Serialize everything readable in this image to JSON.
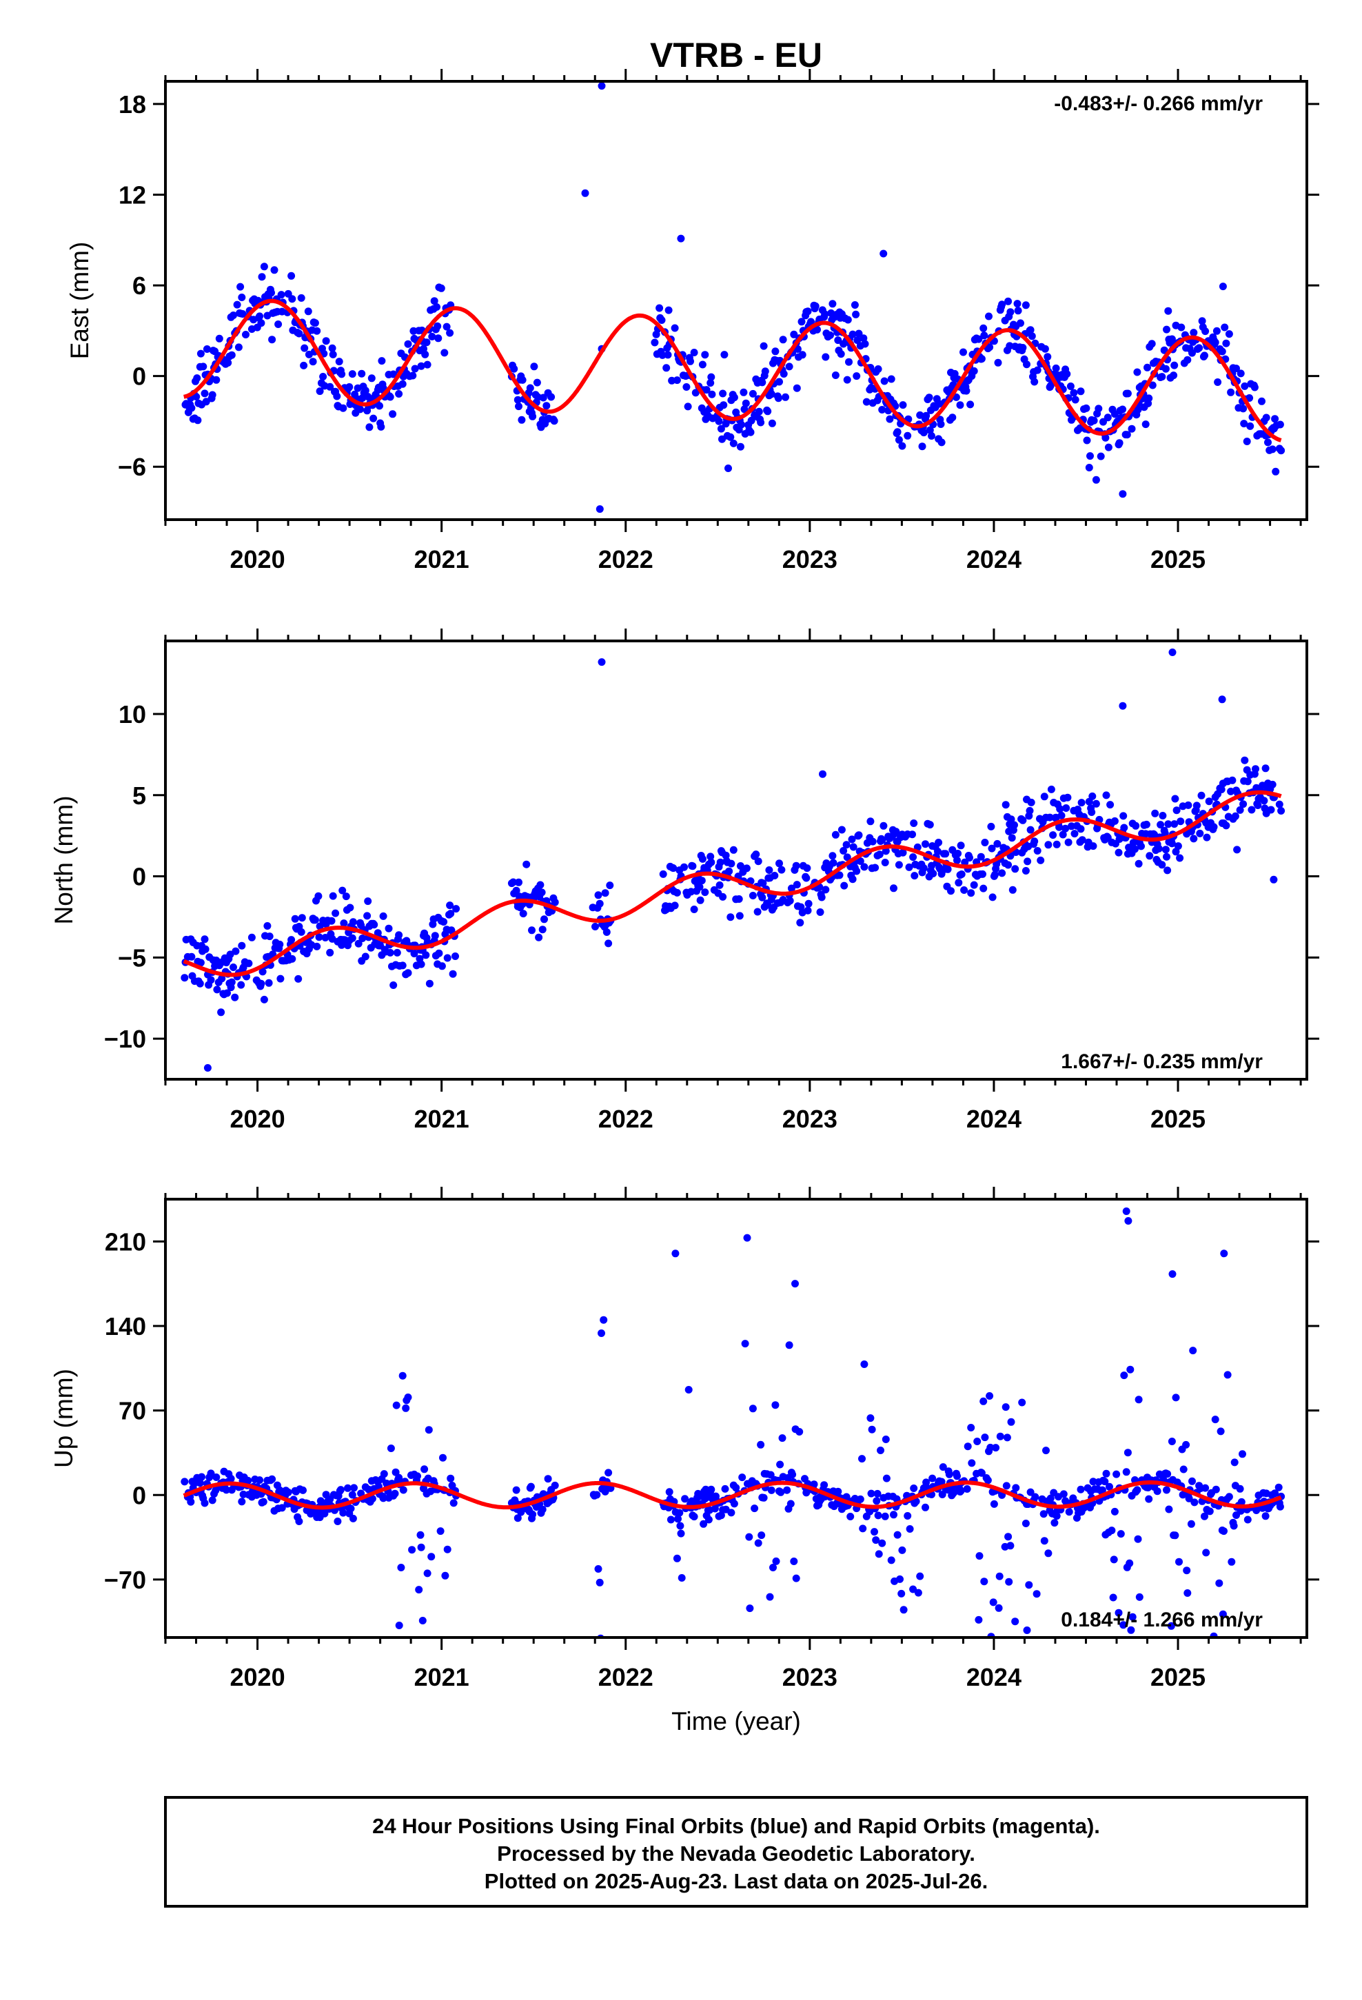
{
  "title": "VTRB - EU",
  "footer": {
    "lines": [
      "24 Hour Positions Using Final Orbits (blue) and Rapid Orbits (magenta).",
      "Processed by the Nevada Geodetic Laboratory.",
      "Plotted on 2025-Aug-23. Last data on 2025-Jul-26."
    ]
  },
  "colors": {
    "points": "#0000ff",
    "fit": "#ff0000",
    "frame": "#000000"
  },
  "chart_data": [
    {
      "type": "scatter",
      "name": "east",
      "ylabel": "East (mm)",
      "xlabel": "",
      "xlim": [
        2019.5,
        2025.7
      ],
      "ylim": [
        -9.5,
        19.5
      ],
      "xticks": [
        2020,
        2021,
        2022,
        2023,
        2024,
        2025
      ],
      "xtick_labels": [
        "2020",
        "2021",
        "2022",
        "2023",
        "2024",
        "2025"
      ],
      "yticks": [
        -6,
        0,
        6,
        12,
        18
      ],
      "ytick_labels": [
        "−6",
        "0",
        "6",
        "12",
        "18"
      ],
      "rate_label": "-0.483+/- 0.266 mm/yr",
      "rate_position": "top-right",
      "fit_model": {
        "offset": 0.5,
        "rate": -0.483,
        "amplitude": 3.3,
        "phase": 0.83,
        "epoch": 2022.5
      },
      "gaps": [
        [
          2021.05,
          2021.38
        ],
        [
          2021.62,
          2022.15
        ]
      ],
      "extra_points": [
        [
          2021.78,
          12.1
        ],
        [
          2021.87,
          19.2
        ],
        [
          2021.87,
          1.8
        ],
        [
          2021.86,
          -8.8
        ],
        [
          2022.3,
          9.1
        ],
        [
          2023.4,
          8.1
        ],
        [
          2024.7,
          -7.8
        ]
      ],
      "noise": 1.1,
      "seed": 11
    },
    {
      "type": "scatter",
      "name": "north",
      "ylabel": "North (mm)",
      "xlabel": "",
      "xlim": [
        2019.5,
        2025.7
      ],
      "ylim": [
        -12.5,
        14.5
      ],
      "xticks": [
        2020,
        2021,
        2022,
        2023,
        2024,
        2025
      ],
      "xtick_labels": [
        "2020",
        "2021",
        "2022",
        "2023",
        "2024",
        "2025"
      ],
      "yticks": [
        -10,
        -5,
        0,
        5,
        10
      ],
      "ytick_labels": [
        "−10",
        "−5",
        "0",
        "5",
        "10"
      ],
      "rate_label": "1.667+/- 0.235 mm/yr",
      "rate_position": "bottom-right",
      "fit_model": {
        "offset": -0.7,
        "rate": 1.667,
        "amplitude": 1.0,
        "phase": 0.15,
        "epoch": 2022.5
      },
      "gaps": [
        [
          2021.08,
          2021.38
        ],
        [
          2021.62,
          2021.82
        ],
        [
          2021.92,
          2022.2
        ]
      ],
      "extra_points": [
        [
          2021.87,
          13.2
        ],
        [
          2019.73,
          -11.8
        ],
        [
          2023.07,
          6.3
        ],
        [
          2024.7,
          10.5
        ],
        [
          2024.97,
          13.8
        ],
        [
          2025.24,
          10.9
        ],
        [
          2025.52,
          -0.2
        ]
      ],
      "noise": 0.95,
      "seed": 23
    },
    {
      "type": "scatter",
      "name": "up",
      "ylabel": "Up (mm)",
      "xlabel": "Time (year)",
      "xlim": [
        2019.5,
        2025.7
      ],
      "ylim": [
        -118,
        245
      ],
      "xticks": [
        2020,
        2021,
        2022,
        2023,
        2024,
        2025
      ],
      "xtick_labels": [
        "2020",
        "2021",
        "2022",
        "2023",
        "2024",
        "2025"
      ],
      "yticks": [
        -70,
        0,
        70,
        140,
        210
      ],
      "ytick_labels": [
        "−70",
        "0",
        "70",
        "140",
        "210"
      ],
      "rate_label": "0.184+/- 1.266 mm/yr",
      "rate_position": "bottom-right",
      "fit_model": {
        "offset": 0.0,
        "rate": 0.184,
        "amplitude": 10.0,
        "phase": 0.6,
        "epoch": 2022.5
      },
      "gaps": [
        [
          2021.08,
          2021.38
        ],
        [
          2021.62,
          2021.82
        ],
        [
          2021.92,
          2022.2
        ]
      ],
      "outlier_windows": [
        [
          2020.72,
          2021.05
        ],
        [
          2021.85,
          2021.9
        ],
        [
          2022.25,
          2022.35
        ],
        [
          2022.62,
          2022.95
        ],
        [
          2023.25,
          2023.6
        ],
        [
          2023.85,
          2024.3
        ],
        [
          2024.6,
          2024.8
        ],
        [
          2024.95,
          2025.1
        ],
        [
          2025.15,
          2025.35
        ]
      ],
      "extra_points": [
        [
          2024.72,
          235
        ],
        [
          2024.73,
          227
        ],
        [
          2022.66,
          213
        ],
        [
          2022.27,
          200
        ],
        [
          2025.25,
          200
        ],
        [
          2024.97,
          183
        ],
        [
          2022.92,
          175
        ],
        [
          2021.88,
          145
        ],
        [
          2020.77,
          -108
        ],
        [
          2024.18,
          -112
        ]
      ],
      "noise": 6.0,
      "seed": 37
    }
  ]
}
